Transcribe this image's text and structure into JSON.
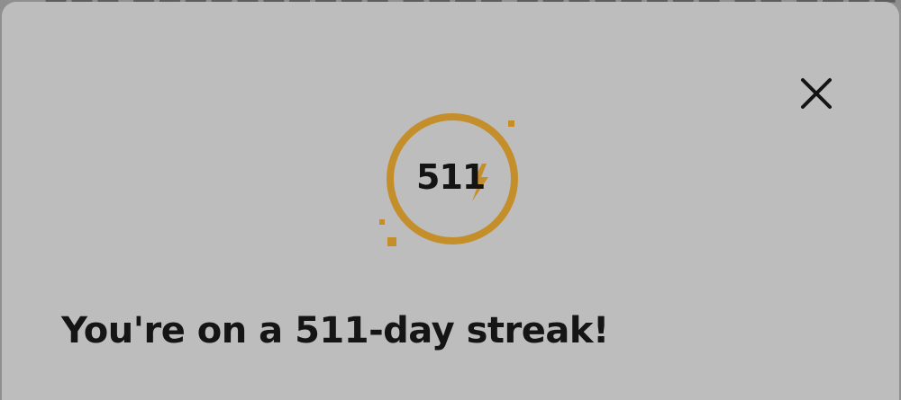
{
  "colors": {
    "accent": "#c48e2a",
    "sheet_background": "#bdbdbd",
    "text": "#151515"
  },
  "modal": {
    "close_icon": "close-icon",
    "badge": {
      "icon": "lightning-bolt-icon",
      "count": "511"
    },
    "headline": "You're on a 511-day streak!"
  }
}
